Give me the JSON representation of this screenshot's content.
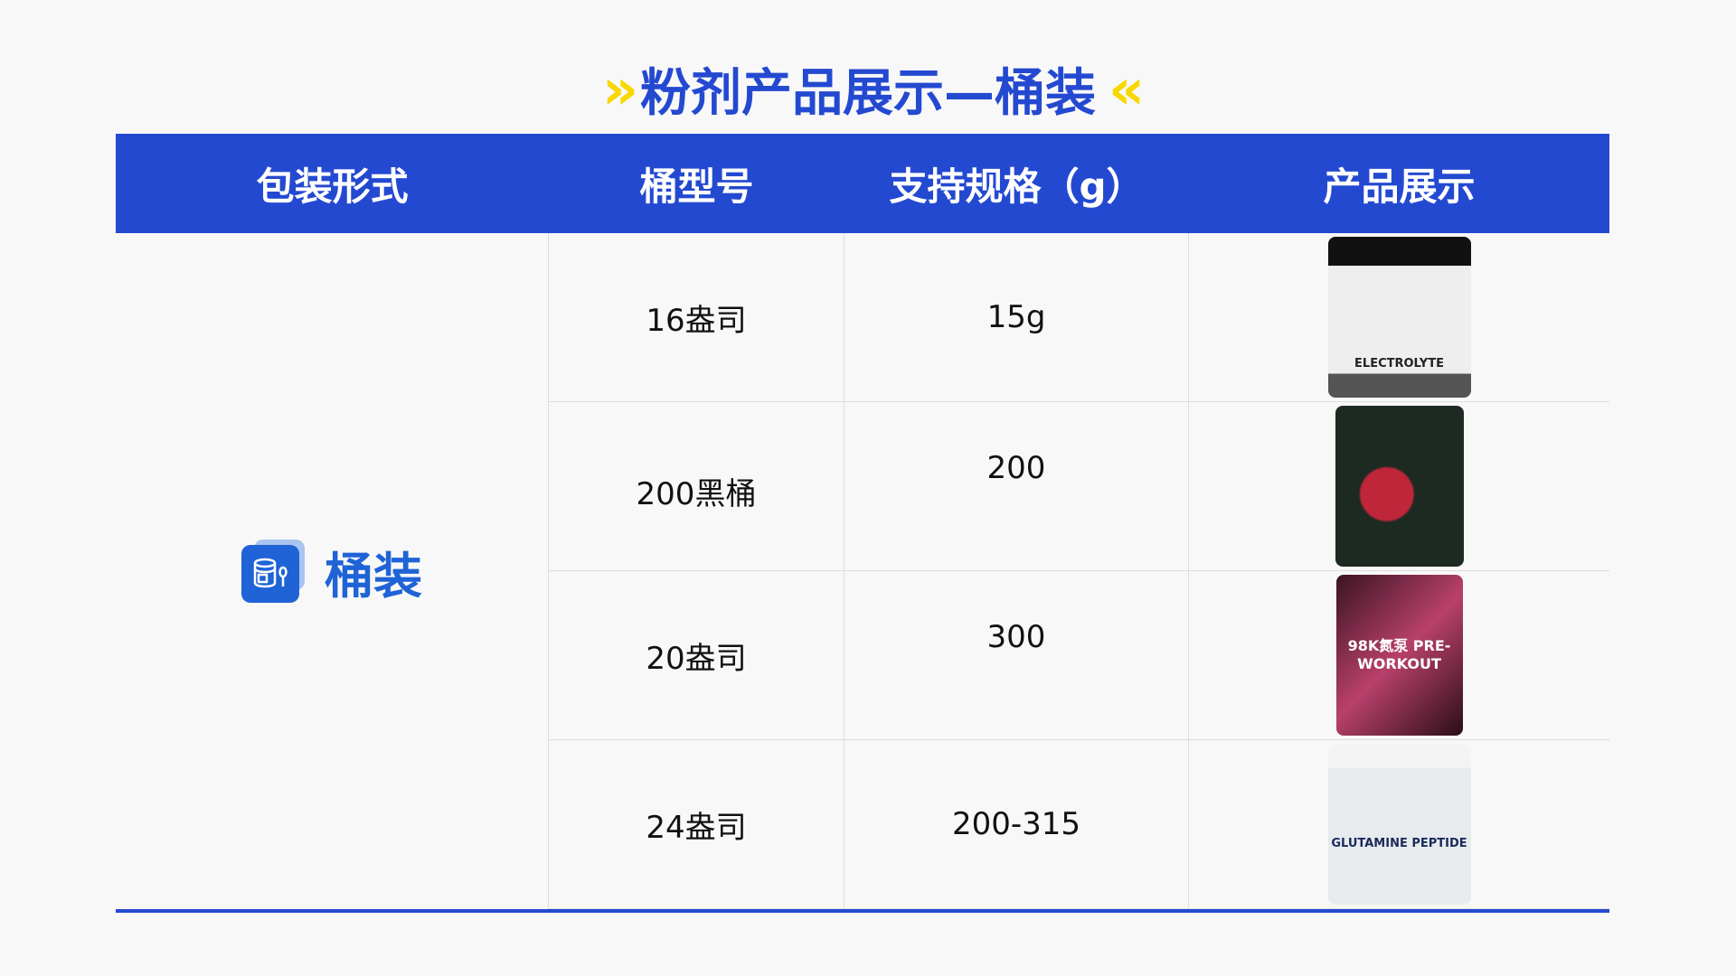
{
  "title": {
    "text": "粉剂产品展示—桶装",
    "left_chevron": "»",
    "right_chevron": "«"
  },
  "header": [
    "包装形式",
    "桶型号",
    "支持规格（g）",
    "产品展示"
  ],
  "category": {
    "label": "桶装",
    "icon": "bucket-spoon-icon"
  },
  "rows": [
    {
      "model": "16盎司",
      "spec": "15g",
      "image": "ELECTROLYTE",
      "jar_color": "#1b1b1b"
    },
    {
      "model": "200黑桶",
      "spec": "200",
      "image": "",
      "jar_color": "#1d2a22"
    },
    {
      "model": "20盎司",
      "spec": "300",
      "image": "98K氮泵 PRE-WORKOUT",
      "jar_color": "#3a1422"
    },
    {
      "model": "24盎司",
      "spec": "200-315",
      "image": "GLUTAMINE PEPTIDE",
      "jar_color": "#e8ebee"
    }
  ],
  "colors": {
    "accent": "#2449d1",
    "chevron": "#f7d800",
    "category": "#1f63d6"
  }
}
